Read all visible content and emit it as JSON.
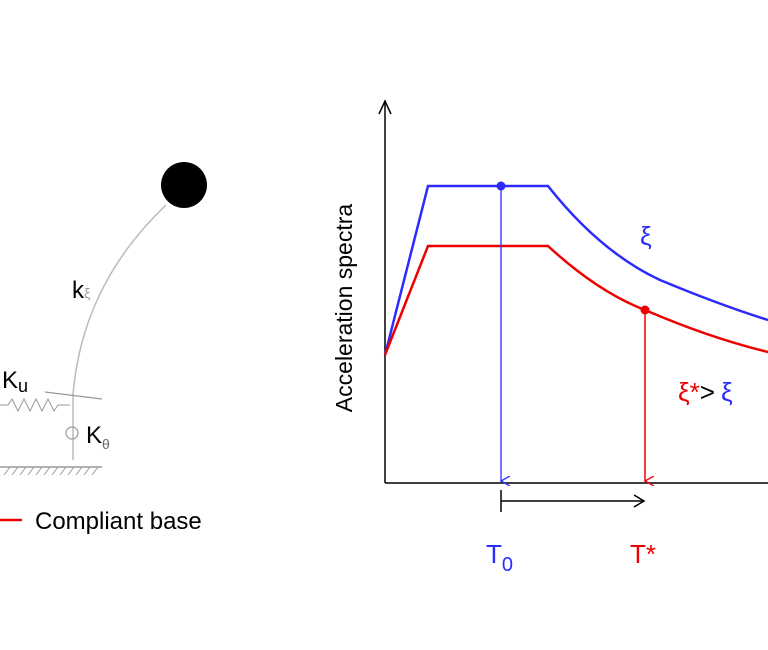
{
  "structure": {
    "column_stiffness": {
      "base": "k",
      "sub": "ξ"
    },
    "translational_spring": {
      "base": "K",
      "sub": "u"
    },
    "rotational_spring": {
      "base": "K",
      "sub": "θ"
    }
  },
  "legend": {
    "label": "Compliant base"
  },
  "spectra": {
    "y_axis_label": "Acceleration spectra",
    "blue_curve_label": "ξ",
    "red_curve_label": {
      "lhs": "ξ*",
      "op": ">",
      "rhs": "ξ"
    },
    "fixed_period": {
      "base": "T",
      "sub": "0"
    },
    "compliant_period": "T*"
  }
}
